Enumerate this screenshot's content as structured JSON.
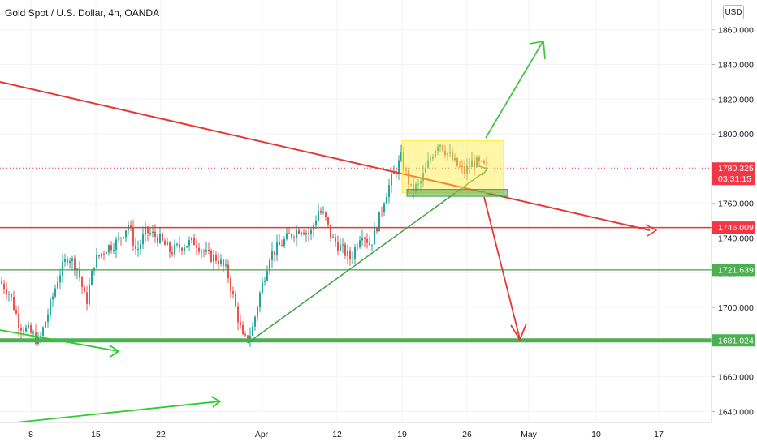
{
  "header": {
    "symbol_title": "Gold Spot / U.S. Dollar, 4h, OANDA",
    "currency_button": "USD"
  },
  "colors": {
    "up_candle": "#26a69a",
    "down_candle": "#ef5350",
    "resistance_line": "#e53935",
    "support_line": "#43a047",
    "strong_support": "#4caf50",
    "consolidation_box": "#ffeb3b",
    "arrow_green": "#43c743",
    "arrow_red": "#e53935",
    "price_label_red": "#f23645",
    "price_label_green": "#4caf50"
  },
  "chart_data": {
    "type": "candlestick",
    "title": "Gold Spot / U.S. Dollar, 4h, OANDA",
    "y_axis": {
      "ticks": [
        "1640.000",
        "1660.000",
        "1680.000",
        "1700.000",
        "1720.000",
        "1740.000",
        "1760.000",
        "1780.000",
        "1800.000",
        "1820.000",
        "1840.000",
        "1860.000"
      ],
      "range": [
        1632,
        1872
      ],
      "position": "right"
    },
    "x_axis": {
      "ticks": [
        "8",
        "15",
        "22",
        "Apr",
        "12",
        "19",
        "26",
        "May",
        "10",
        "17"
      ]
    },
    "grid": true,
    "current_price": {
      "value": "1780.325",
      "countdown": "03:31:15"
    },
    "price_levels": [
      {
        "label": "1746.009",
        "value": 1746.0,
        "color": "red"
      },
      {
        "label": "1721.639",
        "value": 1721.6,
        "color": "green"
      },
      {
        "label": "1681.024",
        "value": 1681.0,
        "color": "green",
        "thick": true
      }
    ],
    "price_path": [
      [
        0,
        1715
      ],
      [
        12,
        1708
      ],
      [
        24,
        1690
      ],
      [
        36,
        1686
      ],
      [
        48,
        1680
      ],
      [
        60,
        1698
      ],
      [
        72,
        1718
      ],
      [
        84,
        1730
      ],
      [
        96,
        1722
      ],
      [
        106,
        1702
      ],
      [
        116,
        1726
      ],
      [
        130,
        1734
      ],
      [
        145,
        1738
      ],
      [
        158,
        1748
      ],
      [
        168,
        1732
      ],
      [
        180,
        1744
      ],
      [
        195,
        1740
      ],
      [
        210,
        1732
      ],
      [
        225,
        1736
      ],
      [
        240,
        1738
      ],
      [
        255,
        1730
      ],
      [
        268,
        1728
      ],
      [
        280,
        1720
      ],
      [
        290,
        1700
      ],
      [
        300,
        1680
      ],
      [
        310,
        1686
      ],
      [
        320,
        1708
      ],
      [
        332,
        1730
      ],
      [
        345,
        1736
      ],
      [
        358,
        1742
      ],
      [
        370,
        1746
      ],
      [
        382,
        1742
      ],
      [
        392,
        1756
      ],
      [
        400,
        1752
      ],
      [
        408,
        1740
      ],
      [
        420,
        1734
      ],
      [
        432,
        1728
      ],
      [
        445,
        1744
      ],
      [
        456,
        1736
      ],
      [
        466,
        1750
      ],
      [
        474,
        1764
      ],
      [
        484,
        1776
      ],
      [
        494,
        1786
      ],
      [
        506,
        1768
      ],
      [
        516,
        1770
      ],
      [
        528,
        1784
      ],
      [
        540,
        1796
      ],
      [
        552,
        1788
      ],
      [
        562,
        1782
      ],
      [
        572,
        1778
      ],
      [
        582,
        1784
      ],
      [
        592,
        1782
      ],
      [
        600,
        1780
      ]
    ],
    "annotations": {
      "consolidation_box": {
        "y_top": 1796,
        "y_bottom": 1766
      },
      "support_zone": {
        "y_top": 1768,
        "y_bottom": 1764
      }
    }
  }
}
